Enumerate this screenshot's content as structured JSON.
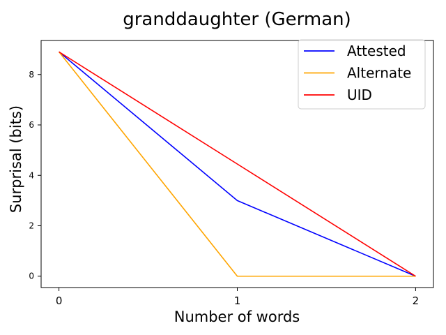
{
  "chart_data": {
    "type": "line",
    "title": "granddaughter (German)",
    "xlabel": "Number of words",
    "ylabel": "Surprisal (bits)",
    "x": [
      0,
      1,
      2
    ],
    "xticks": [
      "0",
      "1",
      "2"
    ],
    "yticks": [
      "0",
      "2",
      "4",
      "6",
      "8"
    ],
    "xlim": [
      -0.1,
      2.1
    ],
    "ylim": [
      -0.45,
      9.35
    ],
    "grid": false,
    "legend_position": "top-right",
    "series": [
      {
        "name": "Attested",
        "color": "#0000ff",
        "values": [
          8.9,
          3.0,
          0.0
        ]
      },
      {
        "name": "Alternate",
        "color": "#ffa500",
        "values": [
          8.9,
          0.0,
          0.0
        ]
      },
      {
        "name": "UID",
        "color": "#ff0000",
        "values": [
          8.9,
          4.45,
          0.0
        ]
      }
    ]
  }
}
